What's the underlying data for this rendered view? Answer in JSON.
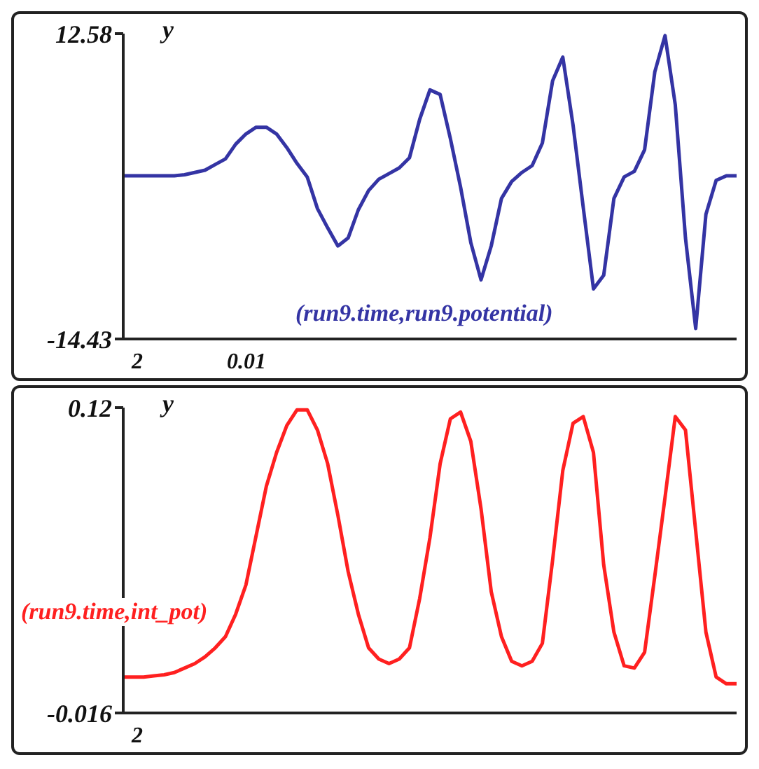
{
  "chart_data": [
    {
      "type": "line",
      "ylabel": "y",
      "annotations": [
        "2",
        "0.01"
      ],
      "categories": [
        null,
        null,
        null,
        null,
        null,
        null,
        null,
        null,
        null,
        null,
        null,
        null,
        null,
        null,
        null,
        null,
        null,
        null,
        null,
        null,
        null,
        null,
        null,
        null,
        null,
        null,
        null,
        null,
        null,
        null,
        null,
        null,
        null,
        null,
        null,
        null,
        null,
        null,
        null,
        null,
        null,
        null,
        null,
        null,
        null,
        null,
        null,
        null,
        null,
        null,
        null,
        null,
        null,
        null,
        null,
        null,
        null,
        null,
        null,
        null,
        null
      ],
      "ylim": [
        -14.43,
        12.58
      ],
      "yticks": [
        -14.43,
        12.58
      ],
      "grid": false,
      "legend": false,
      "marker": "none",
      "line_style": "solid",
      "series": [
        {
          "name": "(run9.time,run9.potential)",
          "color": "#3434a4",
          "values": [
            0,
            0,
            0,
            0,
            0,
            0,
            0.1,
            0.3,
            0.5,
            1.0,
            1.5,
            2.8,
            3.7,
            4.3,
            4.3,
            3.7,
            2.5,
            1.1,
            -0.1,
            -2.9,
            -4.6,
            -6.2,
            -5.5,
            -3.0,
            -1.3,
            -0.3,
            0.2,
            0.7,
            1.6,
            5.0,
            7.6,
            7.2,
            3.3,
            -1.0,
            -5.9,
            -9.2,
            -6.2,
            -2.0,
            -0.5,
            0.3,
            0.9,
            2.9,
            8.4,
            10.5,
            4.5,
            -2.8,
            -10.0,
            -8.8,
            -2.0,
            -0.1,
            0.4,
            2.3,
            9.2,
            12.4,
            6.3,
            -5.5,
            -13.5,
            -3.4,
            -0.4,
            0,
            0
          ]
        }
      ]
    },
    {
      "type": "line",
      "ylabel": "y",
      "annotations": [
        "2"
      ],
      "categories": [
        null,
        null,
        null,
        null,
        null,
        null,
        null,
        null,
        null,
        null,
        null,
        null,
        null,
        null,
        null,
        null,
        null,
        null,
        null,
        null,
        null,
        null,
        null,
        null,
        null,
        null,
        null,
        null,
        null,
        null,
        null,
        null,
        null,
        null,
        null,
        null,
        null,
        null,
        null,
        null,
        null,
        null,
        null,
        null,
        null,
        null,
        null,
        null,
        null,
        null,
        null,
        null,
        null,
        null,
        null,
        null,
        null,
        null,
        null,
        null,
        null
      ],
      "ylim": [
        -0.016,
        0.12
      ],
      "yticks": [
        -0.016,
        0.12
      ],
      "grid": false,
      "legend": false,
      "marker": "none",
      "line_style": "solid",
      "series": [
        {
          "name": "(run9.time,int_pot)",
          "color": "#ff2020",
          "values": [
            0,
            0,
            0,
            0.0005,
            0.001,
            0.002,
            0.004,
            0.006,
            0.009,
            0.013,
            0.018,
            0.028,
            0.041,
            0.063,
            0.085,
            0.1,
            0.112,
            0.119,
            0.119,
            0.11,
            0.095,
            0.072,
            0.047,
            0.028,
            0.013,
            0.008,
            0.006,
            0.008,
            0.013,
            0.035,
            0.062,
            0.095,
            0.115,
            0.118,
            0.105,
            0.075,
            0.038,
            0.018,
            0.007,
            0.005,
            0.007,
            0.015,
            0.052,
            0.092,
            0.113,
            0.116,
            0.1,
            0.05,
            0.02,
            0.005,
            0.004,
            0.011,
            0.045,
            0.08,
            0.116,
            0.11,
            0.065,
            0.02,
            0.0,
            -0.003,
            -0.003
          ]
        }
      ]
    }
  ]
}
